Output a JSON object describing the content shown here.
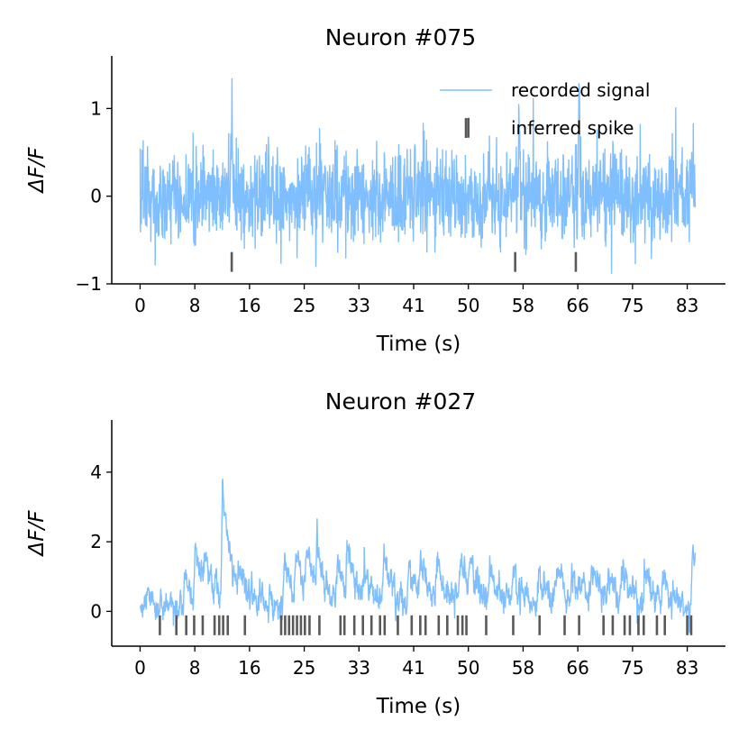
{
  "chart_data": [
    {
      "type": "line",
      "title": "Neuron #075",
      "xlabel": "Time (s)",
      "ylabel": "ΔF/F",
      "xlim": [
        -4.3,
        88.8
      ],
      "ylim": [
        -1.0,
        1.6
      ],
      "xticks": [
        0,
        8.3,
        16.6,
        24.9,
        33.2,
        41.5,
        49.8,
        58.1,
        66.4,
        74.7,
        83.0
      ],
      "xtick_labels": [
        "0",
        "8",
        "16",
        "25",
        "33",
        "41",
        "50",
        "58",
        "66",
        "75",
        "83"
      ],
      "yticks": [
        -1,
        0,
        1
      ],
      "ytick_labels": [
        "−1",
        "0",
        "1"
      ],
      "grid": false,
      "legend_position": "top-right",
      "series": [
        {
          "name": "recorded signal",
          "color": "#7fbfff",
          "kind": "noisy-trace",
          "duration_s": 84.2,
          "noise_std": 0.27,
          "peaks": [
            [
              13.9,
              1.4
            ],
            [
              57.5,
              0.95
            ],
            [
              66.6,
              1.47
            ]
          ]
        },
        {
          "name": "inferred spike",
          "color": "#595959",
          "kind": "event-ticks",
          "times_s": [
            13.9,
            49.8,
            56.9,
            66.1
          ],
          "y_levels": [
            -0.75,
            0.78,
            -0.75,
            -0.75
          ]
        }
      ]
    },
    {
      "type": "line",
      "title": "Neuron #027",
      "xlabel": "Time (s)",
      "ylabel": "ΔF/F",
      "xlim": [
        -4.3,
        88.8
      ],
      "ylim": [
        -1.0,
        5.5
      ],
      "xticks": [
        0,
        8.3,
        16.6,
        24.9,
        33.2,
        41.5,
        49.8,
        58.1,
        66.4,
        74.7,
        83.0
      ],
      "xtick_labels": [
        "0",
        "8",
        "16",
        "25",
        "33",
        "41",
        "50",
        "58",
        "66",
        "75",
        "83"
      ],
      "yticks": [
        0,
        2,
        4
      ],
      "ytick_labels": [
        "0",
        "2",
        "4"
      ],
      "grid": false,
      "series": [
        {
          "name": "recorded signal",
          "color": "#7fbfff",
          "kind": "calcium-trace",
          "duration_s": 84.2,
          "noise_std": 0.2,
          "peaks": [
            [
              6.8,
              1.2
            ],
            [
              8.3,
              1.6
            ],
            [
              10.0,
              1.2
            ],
            [
              12.5,
              4.0
            ],
            [
              15.0,
              1.0
            ],
            [
              21.8,
              1.5
            ],
            [
              23.6,
              1.6
            ],
            [
              25.3,
              1.7
            ],
            [
              26.8,
              1.4
            ],
            [
              30.0,
              1.5
            ],
            [
              31.4,
              1.6
            ],
            [
              34.0,
              1.2
            ],
            [
              37.0,
              1.6
            ],
            [
              40.7,
              1.4
            ],
            [
              42.5,
              1.4
            ],
            [
              45.0,
              1.5
            ],
            [
              48.6,
              1.3
            ],
            [
              50.0,
              1.2
            ],
            [
              53.0,
              1.0
            ],
            [
              56.6,
              1.2
            ],
            [
              60.5,
              1.2
            ],
            [
              63.0,
              1.1
            ],
            [
              65.5,
              1.2
            ],
            [
              68.5,
              1.2
            ],
            [
              71.0,
              1.1
            ],
            [
              73.0,
              1.0
            ],
            [
              76.5,
              1.1
            ],
            [
              79.2,
              1.0
            ],
            [
              83.8,
              2.2
            ]
          ],
          "tail_s": 1.4
        },
        {
          "name": "inferred spike",
          "color": "#595959",
          "kind": "event-ticks",
          "y_level": -0.4,
          "times_s": [
            3.0,
            5.5,
            7.0,
            8.2,
            9.5,
            11.3,
            12.0,
            12.6,
            13.3,
            15.9,
            21.4,
            22.0,
            22.6,
            23.2,
            23.8,
            24.4,
            25.0,
            25.7,
            27.2,
            30.4,
            31.0,
            32.5,
            33.8,
            35.1,
            36.4,
            37.1,
            39.1,
            41.2,
            42.5,
            43.3,
            45.3,
            46.6,
            48.2,
            48.9,
            49.5,
            52.5,
            56.6,
            60.6,
            64.4,
            66.6,
            70.3,
            71.7,
            73.5,
            74.3,
            75.6,
            76.4,
            78.4,
            79.6,
            83.0,
            83.6
          ]
        }
      ]
    }
  ]
}
